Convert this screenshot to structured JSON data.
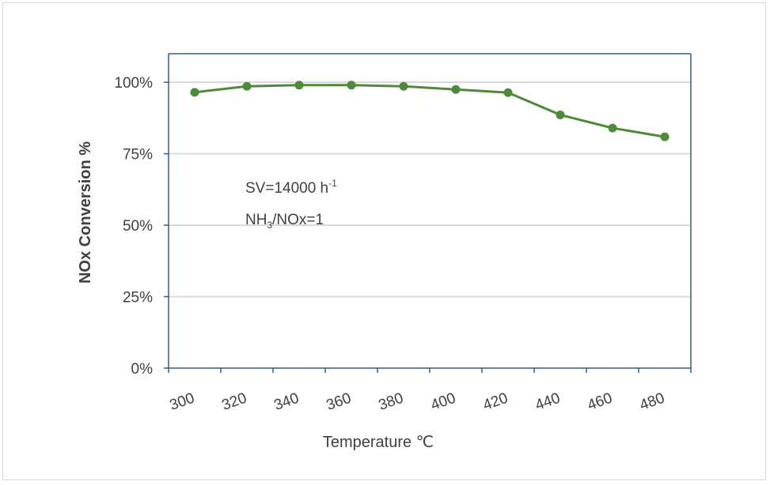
{
  "chart_data": {
    "type": "line",
    "x": [
      310,
      330,
      350,
      370,
      390,
      410,
      430,
      450,
      470,
      490
    ],
    "series": [
      {
        "values": [
          96.5,
          98.6,
          99.0,
          99.0,
          98.6,
          97.5,
          96.4,
          88.6,
          84.0,
          80.9
        ]
      }
    ],
    "categories": [
      "300",
      "320",
      "340",
      "360",
      "380",
      "400",
      "420",
      "440",
      "460",
      "480"
    ],
    "yticks": [
      "0%",
      "25%",
      "50%",
      "75%",
      "100%"
    ],
    "ylim": [
      0,
      110
    ],
    "xlim": [
      300,
      500
    ],
    "xlabel": "Temperature ℃",
    "ylabel": "NOx Conversion %",
    "grid": "horizontal",
    "colors": {
      "line": "#4e8a3a",
      "axis": "#2e5f8f",
      "grid": "#d9d9d9",
      "text": "#404040"
    },
    "annotations": {
      "sv_main": "SV=14000 h",
      "sv_sup": "-1",
      "ratio_a": "NH",
      "ratio_sub": "3",
      "ratio_b": "/NOx=1"
    }
  }
}
